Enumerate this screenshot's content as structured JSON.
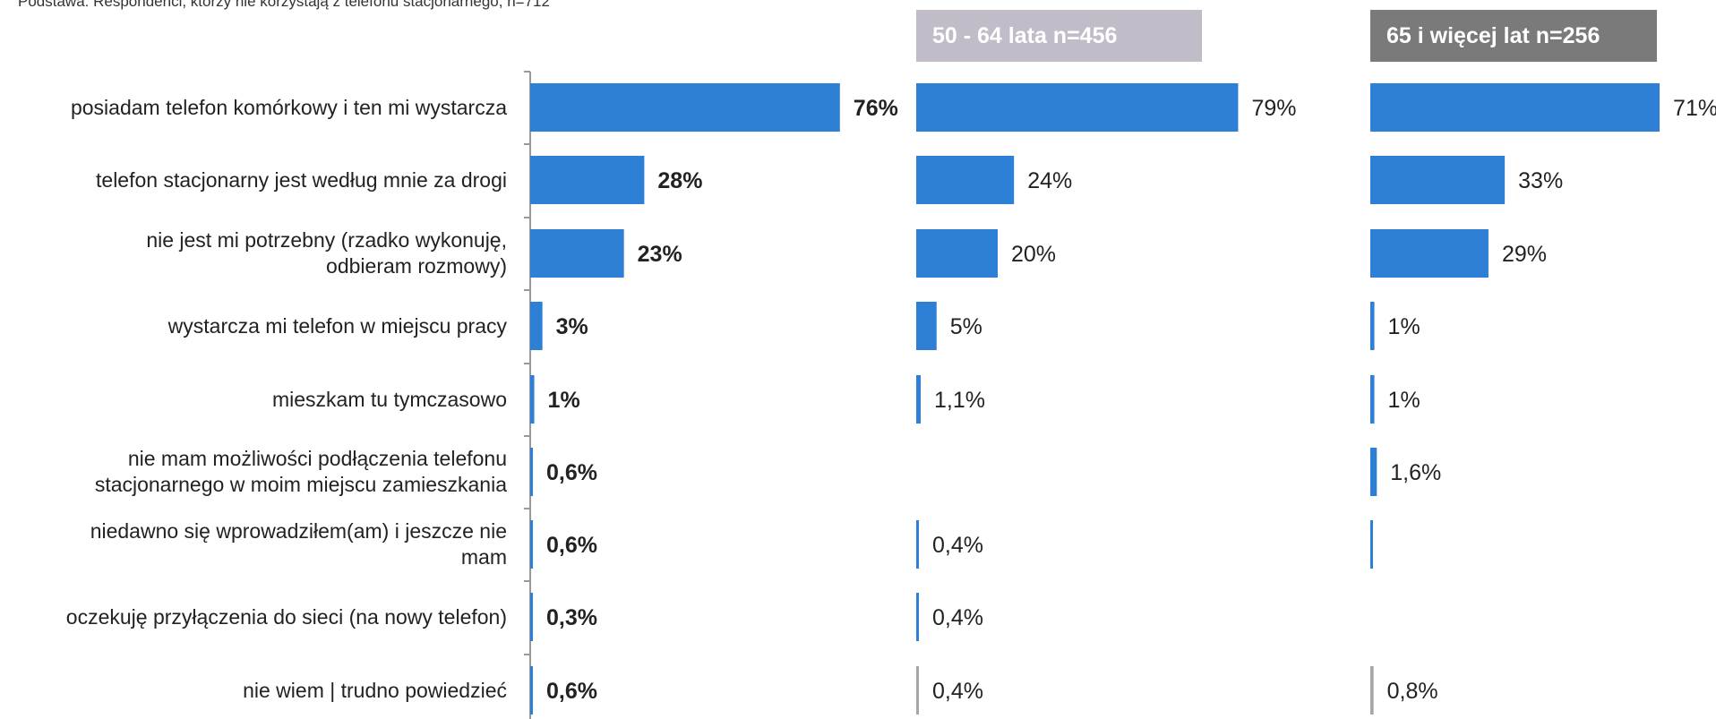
{
  "base_note": "Podstawa: Respondenci, którzy nie korzystają z telefonu stacjonarnego, n=712",
  "chart_data": {
    "type": "bar",
    "orientation": "horizontal",
    "title": "",
    "xlabel": "",
    "ylabel": "",
    "xlim": [
      0,
      100
    ],
    "categories": [
      "posiadam telefon komórkowy i ten mi wystarcza",
      "telefon stacjonarny jest według mnie za drogi",
      "nie jest mi potrzebny (rzadko wykonuję, odbieram rozmowy)",
      "wystarcza mi telefon w miejscu pracy",
      "mieszkam tu tymczasowo",
      "nie mam możliwości podłączenia telefonu stacjonarnego w moim miejscu zamieszkania",
      "niedawno się wprowadziłem(am) i jeszcze nie mam",
      "oczekuję przyłączenia do sieci (na nowy telefon)",
      "nie wiem | trudno powiedzieć"
    ],
    "category_label_lines": [
      [
        "posiadam telefon komórkowy i ten mi wystarcza"
      ],
      [
        "telefon stacjonarny jest według mnie za drogi"
      ],
      [
        "nie jest mi potrzebny (rzadko wykonuję,",
        "odbieram rozmowy)"
      ],
      [
        "wystarcza mi telefon w miejscu pracy"
      ],
      [
        "mieszkam tu tymczasowo"
      ],
      [
        "nie mam możliwości podłączenia telefonu",
        "stacjonarnego w moim miejscu zamieszkania"
      ],
      [
        "niedawno się wprowadziłem(am) i jeszcze nie",
        "mam"
      ],
      [
        "oczekuję przyłączenia do sieci (na nowy telefon)"
      ],
      [
        "nie wiem | trudno powiedzieć"
      ]
    ],
    "series": [
      {
        "name": "",
        "values": [
          76,
          28,
          23,
          3,
          1,
          0.6,
          0.6,
          0.3,
          0.6
        ],
        "labels": [
          "76%",
          "28%",
          "23%",
          "3%",
          "1%",
          "0,6%",
          "0,6%",
          "0,3%",
          "0,6%"
        ],
        "label_bold": true
      },
      {
        "name": "50 - 64 lata n=456",
        "values": [
          79,
          24,
          20,
          5,
          1.1,
          null,
          0.4,
          0.4,
          0.4
        ],
        "labels": [
          "79%",
          "24%",
          "20%",
          "5%",
          "1,1%",
          "",
          "0,4%",
          "0,4%",
          "0,4%"
        ],
        "label_bold": false
      },
      {
        "name": "65 i więcej lat n=256",
        "values": [
          71,
          33,
          29,
          1,
          1,
          1.6,
          0.4,
          null,
          0.8
        ],
        "labels": [
          "71%",
          "33%",
          "29%",
          "1%",
          "1%",
          "1,6%",
          "",
          "",
          "0,8%"
        ],
        "label_bold": false
      }
    ],
    "colors": {
      "bar": "#2e7fd6",
      "bar_unknown": "#a6a6a6",
      "axis": "#9a9a9a",
      "header_50_64": "#c2bcc8",
      "header_65_plus": "#7a7a7a"
    }
  }
}
